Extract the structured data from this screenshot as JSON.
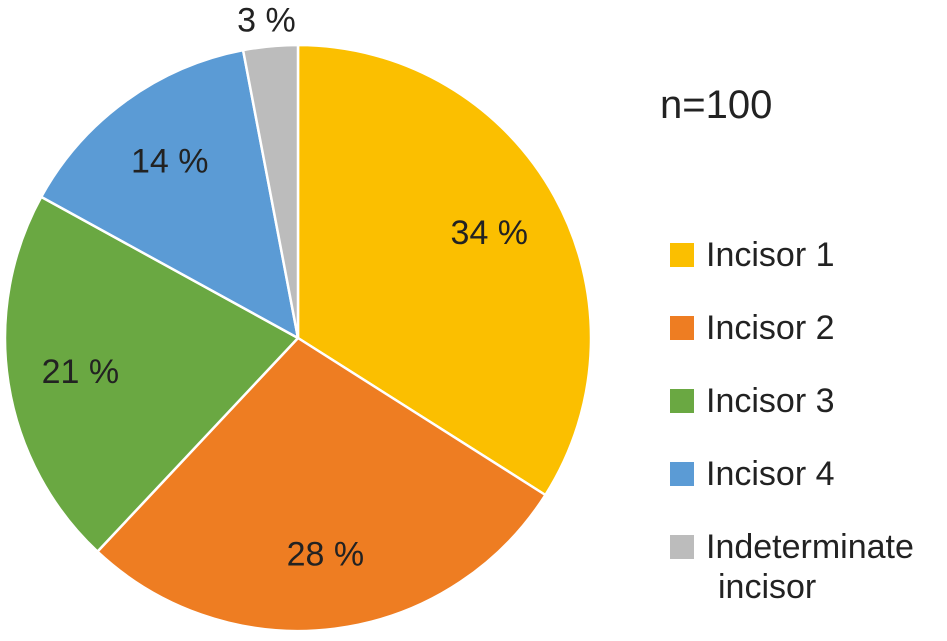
{
  "sample_size_text": "n=100",
  "chart_data": {
    "type": "pie",
    "title": "",
    "start_angle_deg": 0,
    "direction": "clockwise",
    "legend_position": "right",
    "slices": [
      {
        "name": "Incisor 1",
        "legend_lines": [
          "Incisor 1"
        ],
        "value": 34,
        "label": "34 %",
        "color": "#FBBF00"
      },
      {
        "name": "Incisor 2",
        "legend_lines": [
          "Incisor 2"
        ],
        "value": 28,
        "label": "28 %",
        "color": "#EE7D22"
      },
      {
        "name": "Incisor 3",
        "legend_lines": [
          "Incisor 3"
        ],
        "value": 21,
        "label": "21 %",
        "color": "#6AA842"
      },
      {
        "name": "Incisor 4",
        "legend_lines": [
          "Incisor 4"
        ],
        "value": 14,
        "label": "14 %",
        "color": "#5B9BD5"
      },
      {
        "name": "Indeterminate incisor",
        "legend_lines": [
          "Indeterminate",
          "incisor"
        ],
        "value": 3,
        "label": "3 %",
        "color": "#BCBCBC"
      }
    ]
  }
}
